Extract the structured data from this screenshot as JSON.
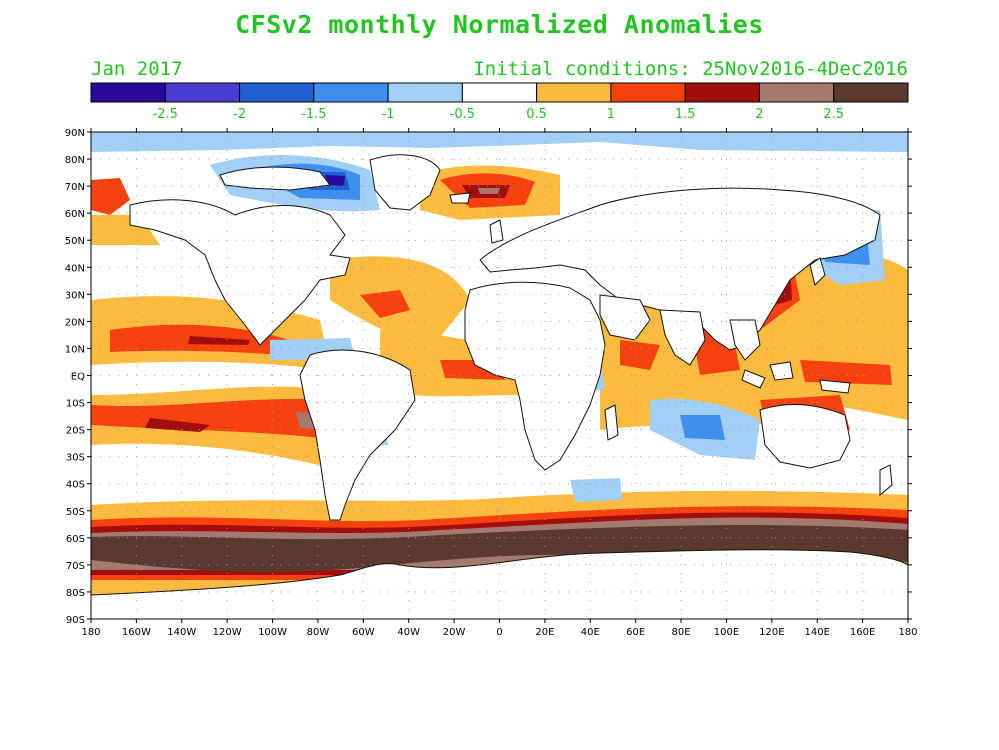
{
  "title": "CFSv2 monthly Normalized Anomalies",
  "subtitle_left": "Jan 2017",
  "subtitle_right": "Initial conditions: 25Nov2016-4Dec2016",
  "colorbar": {
    "colors": [
      "#2a0a9a",
      "#4a3cd2",
      "#1f5fd0",
      "#3f8fee",
      "#a2cff6",
      "#ffffff",
      "#fbbb3f",
      "#f7420f",
      "#a20d0d",
      "#a47a6e",
      "#5a3a2f"
    ],
    "labels": [
      "-2.5",
      "-2",
      "-1.5",
      "-1",
      "-0.5",
      "0.5",
      "1",
      "1.5",
      "2",
      "2.5"
    ]
  },
  "map": {
    "lat_labels": [
      "90N",
      "80N",
      "70N",
      "60N",
      "50N",
      "40N",
      "30N",
      "20N",
      "10N",
      "EQ",
      "10S",
      "20S",
      "30S",
      "40S",
      "50S",
      "60S",
      "70S",
      "80S",
      "90S"
    ],
    "lon_labels": [
      "180",
      "160W",
      "140W",
      "120W",
      "100W",
      "80W",
      "60W",
      "40W",
      "20W",
      "0",
      "20E",
      "40E",
      "60E",
      "80E",
      "100E",
      "120E",
      "140E",
      "160E",
      "180"
    ],
    "colors": {
      "ocean": "#ffffff",
      "land": "#ffffff",
      "coast": "#111111",
      "weak_pos": "#fbbb3f",
      "pos": "#f7420f",
      "strong_pos": "#a20d0d",
      "very_pos": "#a47a6e",
      "extreme_pos": "#5a3a2f",
      "weak_neg": "#a2cff6",
      "neg": "#3f8fee",
      "strong_neg": "#1f5fd0",
      "very_neg": "#2a0a9a"
    }
  }
}
